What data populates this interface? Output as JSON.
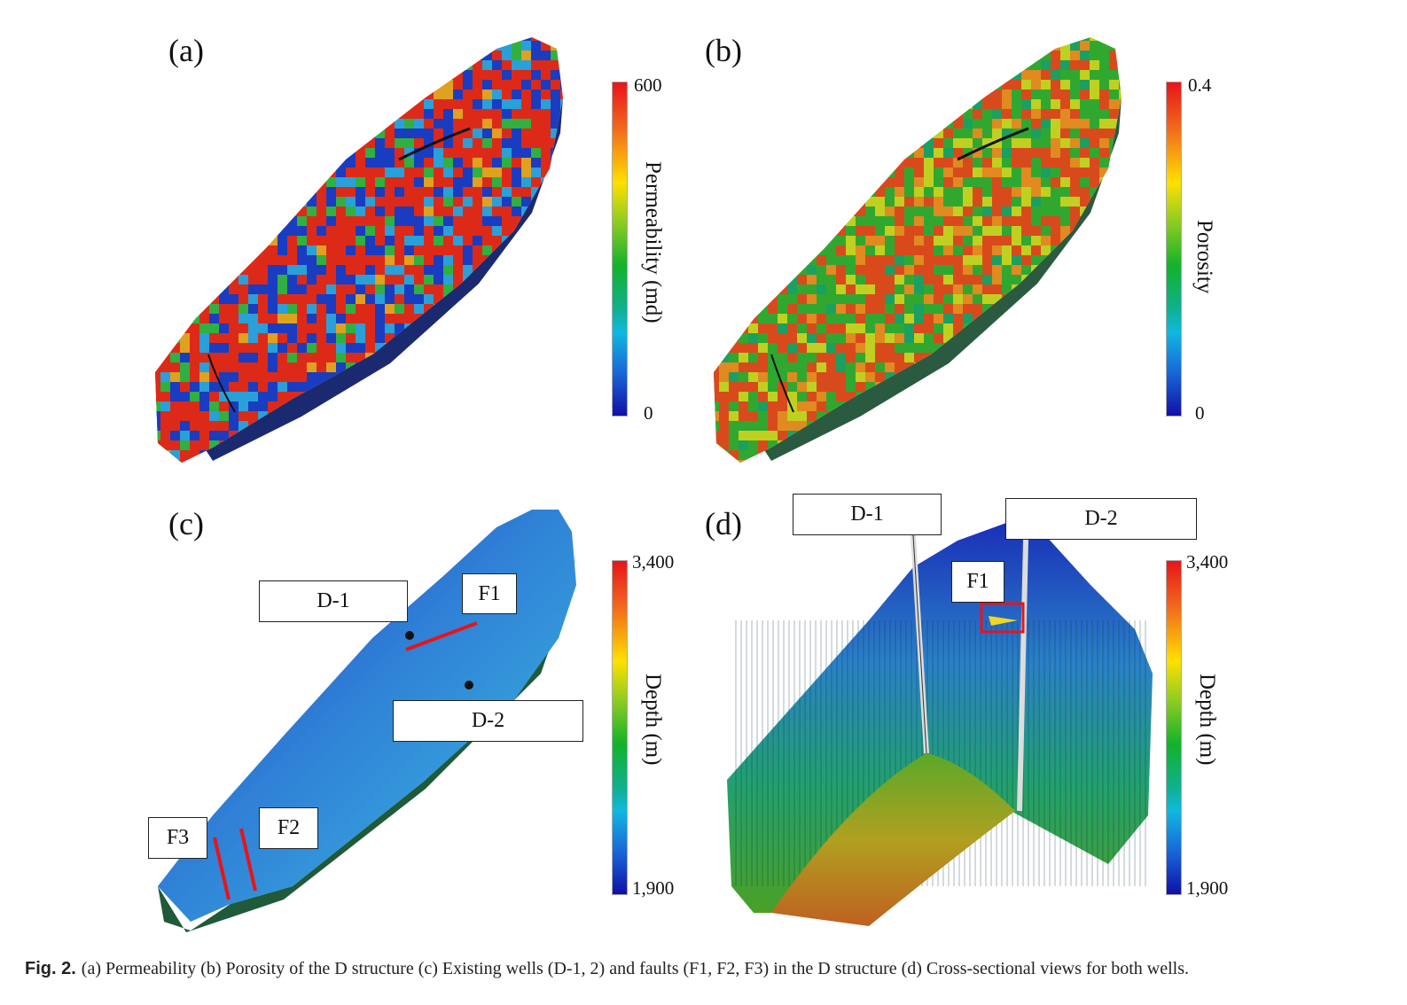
{
  "panels": {
    "a": {
      "label": "(a)",
      "colorbar": {
        "max": "600",
        "min": "0",
        "title": "Permeability (md)"
      }
    },
    "b": {
      "label": "(b)",
      "colorbar": {
        "max": "0.4",
        "min": "0",
        "title": "Porosity"
      }
    },
    "c": {
      "label": "(c)",
      "colorbar": {
        "max": "3,400",
        "min": "1,900",
        "title": "Depth (m)"
      },
      "callouts": {
        "d1": "D-1",
        "d2": "D-2",
        "f1": "F1",
        "f2": "F2",
        "f3": "F3"
      }
    },
    "d": {
      "label": "(d)",
      "colorbar": {
        "max": "3,400",
        "min": "1,900",
        "title": "Depth (m)"
      },
      "callouts": {
        "d1": "D-1",
        "d2": "D-2",
        "f1": "F1"
      }
    }
  },
  "caption": {
    "prefix": "Fig. 2.",
    "text": "(a) Permeability (b) Porosity of the D structure (c) Existing wells (D-1, 2) and faults (F1, F2, F3) in the D structure (d) Cross-sectional views for both wells."
  },
  "colors": {
    "fault": "#e8141a",
    "well": "#d8d8d8"
  }
}
